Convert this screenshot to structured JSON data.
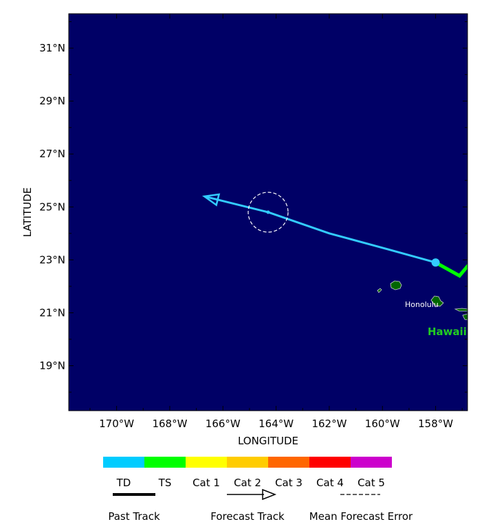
{
  "map": {
    "axes": {
      "xlabel": "LONGITUDE",
      "ylabel": "LATITUDE",
      "lon_range": [
        -171.8,
        -156.8
      ],
      "lat_range": [
        17.3,
        32.3
      ],
      "x_ticks": [
        {
          "lon": -170,
          "label": "170°W"
        },
        {
          "lon": -168,
          "label": "168°W"
        },
        {
          "lon": -166,
          "label": "166°W"
        },
        {
          "lon": -164,
          "label": "164°W"
        },
        {
          "lon": -162,
          "label": "162°W"
        },
        {
          "lon": -160,
          "label": "160°W"
        },
        {
          "lon": -158,
          "label": "158°W"
        }
      ],
      "y_ticks": [
        {
          "lat": 31,
          "label": "31°N"
        },
        {
          "lat": 29,
          "label": "29°N"
        },
        {
          "lat": 27,
          "label": "27°N"
        },
        {
          "lat": 25,
          "label": "25°N"
        },
        {
          "lat": 23,
          "label": "23°N"
        },
        {
          "lat": 21,
          "label": "21°N"
        },
        {
          "lat": 19,
          "label": "19°N"
        }
      ]
    },
    "past_track": [
      {
        "lon": -156.6,
        "lat": 23.0
      },
      {
        "lon": -157.1,
        "lat": 22.4
      },
      {
        "lon": -158.0,
        "lat": 22.9
      }
    ],
    "forecast_track": [
      {
        "lon": -158.0,
        "lat": 22.9
      },
      {
        "lon": -159.8,
        "lat": 23.4
      },
      {
        "lon": -162.0,
        "lat": 24.0
      },
      {
        "lon": -164.3,
        "lat": 24.8
      },
      {
        "lon": -166.7,
        "lat": 25.4
      }
    ],
    "current_position": {
      "lon": -158.0,
      "lat": 22.9
    },
    "forecast_point": {
      "lon": -164.3,
      "lat": 24.8
    },
    "error_radius_deg": 0.75,
    "places": {
      "honolulu": "Honolulu",
      "hawaii": "Hawaii"
    }
  },
  "legend": {
    "categories": [
      {
        "label": "TD",
        "color": "#00ccff"
      },
      {
        "label": "TS",
        "color": "#00ff00"
      },
      {
        "label": "Cat 1",
        "color": "#ffff00"
      },
      {
        "label": "Cat 2",
        "color": "#ffcc00"
      },
      {
        "label": "Cat 3",
        "color": "#ff6600"
      },
      {
        "label": "Cat 4",
        "color": "#ff0000"
      },
      {
        "label": "Cat 5",
        "color": "#cc00cc"
      }
    ],
    "past_track_label": "Past Track",
    "forecast_track_label": "Forecast Track",
    "mean_error_label": "Mean Forecast Error"
  },
  "colors": {
    "ocean": "#000066",
    "land": "#006600",
    "forecast_track": "#33ccff",
    "past_track": "#00ff00",
    "error_circle": "#ffffff"
  }
}
